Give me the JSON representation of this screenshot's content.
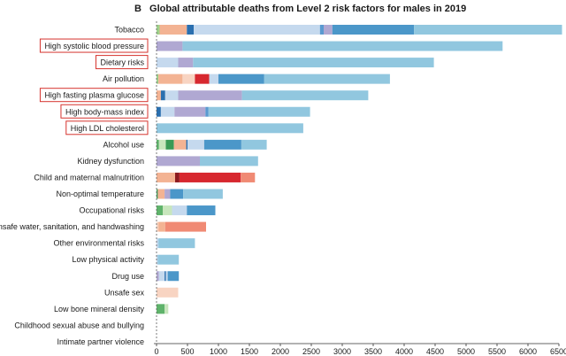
{
  "panel": {
    "letter": "B",
    "title": "Global attributable deaths from Level 2 risk factors for males in 2019"
  },
  "chart_data": {
    "type": "bar",
    "orientation": "horizontal",
    "stacked": true,
    "title": "Global attributable deaths from Level 2 risk factors for males in 2019",
    "xlim": [
      0,
      6500
    ],
    "xticks": [
      0,
      500,
      1000,
      1500,
      2000,
      2500,
      3000,
      3500,
      4000,
      4500,
      5000,
      5500,
      6000,
      6500
    ],
    "grid": false,
    "legend": "none",
    "highlighted_categories": [
      "High systolic blood pressure",
      "Dietary risks",
      "High fasting plasma glucose",
      "High body-mass index",
      "High LDL cholesterol"
    ],
    "highlight_color": "#d6332e",
    "categories": [
      {
        "label": "Tobacco",
        "segments": [
          {
            "value": 50,
            "color": "#9fd18c"
          },
          {
            "value": 440,
            "color": "#f3b393"
          },
          {
            "value": 110,
            "color": "#2a6faf"
          },
          {
            "value": 2040,
            "color": "#c5d9ee"
          },
          {
            "value": 60,
            "color": "#5a9ad0"
          },
          {
            "value": 140,
            "color": "#b0a8d2"
          },
          {
            "value": 1320,
            "color": "#4b97c9"
          },
          {
            "value": 2390,
            "color": "#91c7df"
          }
        ]
      },
      {
        "label": "High systolic blood pressure",
        "segments": [
          {
            "value": 420,
            "color": "#b0a8d2"
          },
          {
            "value": 5170,
            "color": "#91c7df"
          }
        ]
      },
      {
        "label": "Dietary risks",
        "segments": [
          {
            "value": 350,
            "color": "#c5d9ee"
          },
          {
            "value": 240,
            "color": "#b0a8d2"
          },
          {
            "value": 3890,
            "color": "#91c7df"
          }
        ]
      },
      {
        "label": "Air pollution",
        "segments": [
          {
            "value": 30,
            "color": "#9fd18c"
          },
          {
            "value": 390,
            "color": "#f3b393"
          },
          {
            "value": 200,
            "color": "#f8d4c2"
          },
          {
            "value": 230,
            "color": "#d7282f"
          },
          {
            "value": 150,
            "color": "#c5d9ee"
          },
          {
            "value": 740,
            "color": "#4b97c9"
          },
          {
            "value": 2030,
            "color": "#91c7df"
          }
        ]
      },
      {
        "label": "High fasting plasma glucose",
        "segments": [
          {
            "value": 70,
            "color": "#f3b393"
          },
          {
            "value": 70,
            "color": "#2a6faf"
          },
          {
            "value": 210,
            "color": "#c5d9ee"
          },
          {
            "value": 1030,
            "color": "#b0a8d2"
          },
          {
            "value": 2040,
            "color": "#91c7df"
          }
        ]
      },
      {
        "label": "High body-mass index",
        "segments": [
          {
            "value": 70,
            "color": "#2a6faf"
          },
          {
            "value": 220,
            "color": "#c5d9ee"
          },
          {
            "value": 500,
            "color": "#b0a8d2"
          },
          {
            "value": 50,
            "color": "#5a9ad0"
          },
          {
            "value": 1640,
            "color": "#91c7df"
          }
        ]
      },
      {
        "label": "High LDL cholesterol",
        "segments": [
          {
            "value": 2370,
            "color": "#91c7df"
          }
        ]
      },
      {
        "label": "Alcohol use",
        "segments": [
          {
            "value": 40,
            "color": "#5fb36b"
          },
          {
            "value": 110,
            "color": "#c8e6bd"
          },
          {
            "value": 130,
            "color": "#3a9a55"
          },
          {
            "value": 200,
            "color": "#f3b393"
          },
          {
            "value": 20,
            "color": "#2a6faf"
          },
          {
            "value": 270,
            "color": "#c5d9ee"
          },
          {
            "value": 600,
            "color": "#4b97c9"
          },
          {
            "value": 410,
            "color": "#91c7df"
          }
        ]
      },
      {
        "label": "Kidney dysfunction",
        "segments": [
          {
            "value": 700,
            "color": "#b0a8d2"
          },
          {
            "value": 940,
            "color": "#91c7df"
          }
        ]
      },
      {
        "label": "Child and maternal malnutrition",
        "segments": [
          {
            "value": 300,
            "color": "#f3b393"
          },
          {
            "value": 70,
            "color": "#8c1a1f"
          },
          {
            "value": 990,
            "color": "#d7282f"
          },
          {
            "value": 230,
            "color": "#f08a74"
          }
        ]
      },
      {
        "label": "Non-optimal temperature",
        "segments": [
          {
            "value": 20,
            "color": "#3a9a55"
          },
          {
            "value": 110,
            "color": "#f3b393"
          },
          {
            "value": 90,
            "color": "#b0a8d2"
          },
          {
            "value": 210,
            "color": "#4b97c9"
          },
          {
            "value": 640,
            "color": "#91c7df"
          }
        ]
      },
      {
        "label": "Occupational risks",
        "segments": [
          {
            "value": 100,
            "color": "#5fb36b"
          },
          {
            "value": 150,
            "color": "#c8e6bd"
          },
          {
            "value": 240,
            "color": "#c5d9ee"
          },
          {
            "value": 460,
            "color": "#4b97c9"
          }
        ]
      },
      {
        "label": "Unsafe water, sanitation, and handwashing",
        "segments": [
          {
            "value": 30,
            "color": "#f8d4c2"
          },
          {
            "value": 110,
            "color": "#f3b393"
          },
          {
            "value": 660,
            "color": "#f08a74"
          }
        ]
      },
      {
        "label": "Other environmental risks",
        "segments": [
          {
            "value": 30,
            "color": "#c5d9ee"
          },
          {
            "value": 590,
            "color": "#91c7df"
          }
        ]
      },
      {
        "label": "Low physical activity",
        "segments": [
          {
            "value": 20,
            "color": "#c5d9ee"
          },
          {
            "value": 340,
            "color": "#91c7df"
          }
        ]
      },
      {
        "label": "Drug use",
        "segments": [
          {
            "value": 40,
            "color": "#b0a8d2"
          },
          {
            "value": 90,
            "color": "#c5d9ee"
          },
          {
            "value": 20,
            "color": "#2a6faf"
          },
          {
            "value": 30,
            "color": "#c5d9ee"
          },
          {
            "value": 180,
            "color": "#4b97c9"
          }
        ]
      },
      {
        "label": "Unsafe sex",
        "segments": [
          {
            "value": 350,
            "color": "#f8d4c2"
          }
        ]
      },
      {
        "label": "Low bone mineral density",
        "segments": [
          {
            "value": 130,
            "color": "#5fb36b"
          },
          {
            "value": 60,
            "color": "#c8e6bd"
          }
        ]
      },
      {
        "label": "Childhood sexual abuse and bullying",
        "segments": []
      },
      {
        "label": "Intimate partner violence",
        "segments": []
      }
    ]
  }
}
